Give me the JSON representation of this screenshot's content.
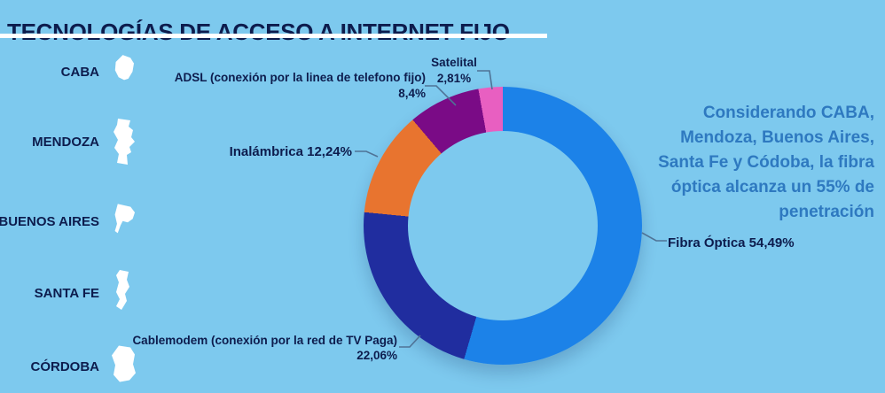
{
  "title": "TECNOLOGÍAS DE ACCESO A INTERNET FIJO",
  "provinces": [
    {
      "name": "CABA"
    },
    {
      "name": "MENDOZA"
    },
    {
      "name": "BUENOS AIRES"
    },
    {
      "name": "SANTA FE"
    },
    {
      "name": "CÓRDOBA"
    }
  ],
  "annotation": {
    "text": "Considerando CABA, Mendoza, Buenos Aires, Santa Fe y Códoba, la fibra óptica alcanza un 55% de penetración",
    "lines": [
      "Considerando CABA,",
      "Mendoza, Buenos Aires,",
      "Santa Fe y Códoba, la fibra",
      "óptica alcanza un 55% de",
      "penetración"
    ]
  },
  "chart_data": {
    "type": "pie",
    "subtype": "donut",
    "title": "Tecnologías de acceso a internet fijo",
    "unit": "%",
    "start_angle_deg": 0,
    "direction": "clockwise",
    "hole_ratio": 0.68,
    "legend_position": "callouts",
    "slices": [
      {
        "label": "Fibra Óptica",
        "value": 54.49,
        "color": "#1C82E8",
        "callout": {
          "line1": "Fibra Óptica 54,49%"
        }
      },
      {
        "label": "Cablemodem (conexión por la red de TV Paga)",
        "value": 22.06,
        "color": "#202D9F",
        "callout": {
          "line1": "Cablemodem (conexión por la red de TV Paga)",
          "line2": "22,06%"
        }
      },
      {
        "label": "Inalámbrica",
        "value": 12.24,
        "color": "#E8742F",
        "callout": {
          "line1": "Inalámbrica 12,24%"
        }
      },
      {
        "label": "ADSL (conexión por la linea de telefono fijo)",
        "value": 8.4,
        "color": "#7A0B86",
        "callout": {
          "line1": "ADSL (conexión por la linea de telefono fijo)",
          "line2": "8,4%"
        }
      },
      {
        "label": "Satelital",
        "value": 2.81,
        "color": "#E85FC1",
        "callout": {
          "line1": "Satelital",
          "line2": "2,81%"
        }
      }
    ]
  },
  "colors": {
    "background": "#7DC9EE",
    "text_navy": "#0D1C4D",
    "annotation_blue": "#2E79C0",
    "callout_line": "#4F7396",
    "underline_white": "#FFFFFF"
  }
}
